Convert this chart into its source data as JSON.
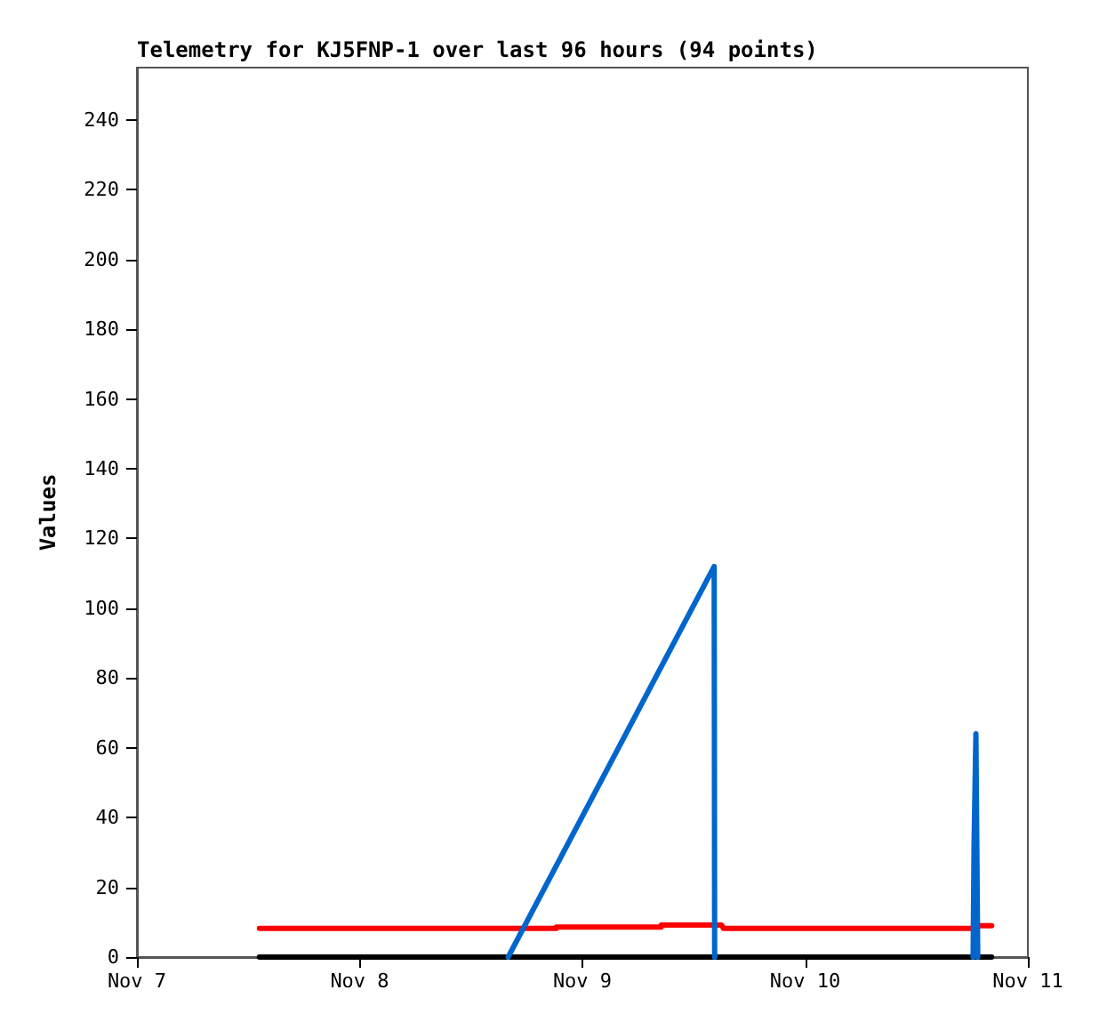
{
  "chart_data": {
    "type": "line",
    "title": "Telemetry for KJ5FNP-1 over last 96 hours (94 points)",
    "ylabel": "Values",
    "xlim": [
      "--11-07",
      "--11-11"
    ],
    "xticks": [
      {
        "value": "--11-07",
        "label": "Nov 7"
      },
      {
        "value": "--11-08",
        "label": "Nov 8"
      },
      {
        "value": "--11-09",
        "label": "Nov 9"
      },
      {
        "value": "--11-10",
        "label": "Nov 10"
      },
      {
        "value": "--11-11",
        "label": "Nov 11"
      }
    ],
    "ylim": [
      0,
      255
    ],
    "yticks": [
      0,
      20,
      40,
      60,
      80,
      100,
      120,
      140,
      160,
      180,
      200,
      220,
      240
    ],
    "grid": false,
    "marker": "none",
    "line_style": "solid",
    "series": [
      {
        "color": "#000000",
        "x": [
          "--11-07T13:12",
          "--11-10T20:06"
        ],
        "values": [
          0,
          0
        ]
      },
      {
        "color": "#ff0000",
        "x": [
          "--11-07T13:12",
          "--11-08T21:12",
          "--11-08T21:12",
          "--11-09T08:30",
          "--11-09T08:30",
          "--11-09T15:00",
          "--11-09T15:12",
          "--11-10T18:12",
          "--11-10T18:12",
          "--11-10T20:06"
        ],
        "values": [
          8.2,
          8.2,
          8.6,
          8.6,
          9.2,
          9.2,
          8.2,
          8.2,
          9,
          9
        ]
      },
      {
        "color": "#0066cc",
        "x": [
          "--11-08T16:00",
          "--11-09T14:12",
          "--11-09T14:15",
          "--11-10T04:00",
          "--11-10T18:06",
          "--11-10T18:12",
          "--11-10T18:18",
          "--11-10T18:24",
          "--11-10T18:30",
          "--11-10T18:36"
        ],
        "values": [
          0,
          112,
          0,
          null,
          0,
          32,
          32,
          64,
          64,
          0
        ]
      }
    ]
  }
}
